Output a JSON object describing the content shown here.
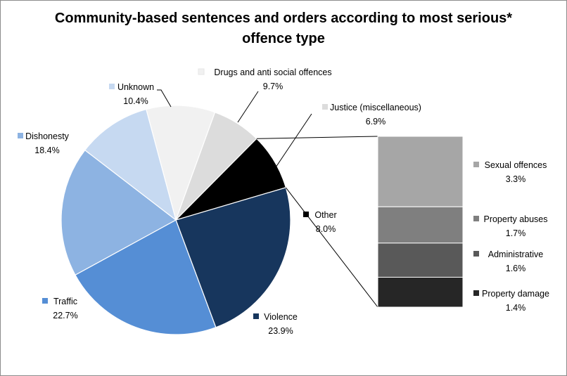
{
  "chart_data": {
    "type": "pie",
    "title": "Community-based sentences and orders according to most serious* offence type",
    "slices": [
      {
        "label": "Drugs and anti social offences",
        "value": 9.7,
        "display": "9.7%",
        "color": "#f1f1f1"
      },
      {
        "label": "Justice (miscellaneous)",
        "value": 6.9,
        "display": "6.9%",
        "color": "#dcdcdc"
      },
      {
        "label": "Other",
        "value": 8.0,
        "display": "8.0%",
        "color": "#000000"
      },
      {
        "label": "Violence",
        "value": 23.9,
        "display": "23.9%",
        "color": "#17365d"
      },
      {
        "label": "Traffic",
        "value": 22.7,
        "display": "22.7%",
        "color": "#558ed5"
      },
      {
        "label": "Dishonesty",
        "value": 18.4,
        "display": "18.4%",
        "color": "#8db3e2"
      },
      {
        "label": "Unknown",
        "value": 10.4,
        "display": "10.4%",
        "color": "#c6d9f1"
      }
    ],
    "breakdown": {
      "parent": "Other",
      "segments": [
        {
          "label": "Sexual offences",
          "value": 3.3,
          "display": "3.3%",
          "color": "#a6a6a6"
        },
        {
          "label": "Property abuses",
          "value": 1.7,
          "display": "1.7%",
          "color": "#7f7f7f"
        },
        {
          "label": "Administrative",
          "value": 1.6,
          "display": "1.6%",
          "color": "#595959"
        },
        {
          "label": "Property damage",
          "value": 1.4,
          "display": "1.4%",
          "color": "#262626"
        }
      ]
    }
  }
}
